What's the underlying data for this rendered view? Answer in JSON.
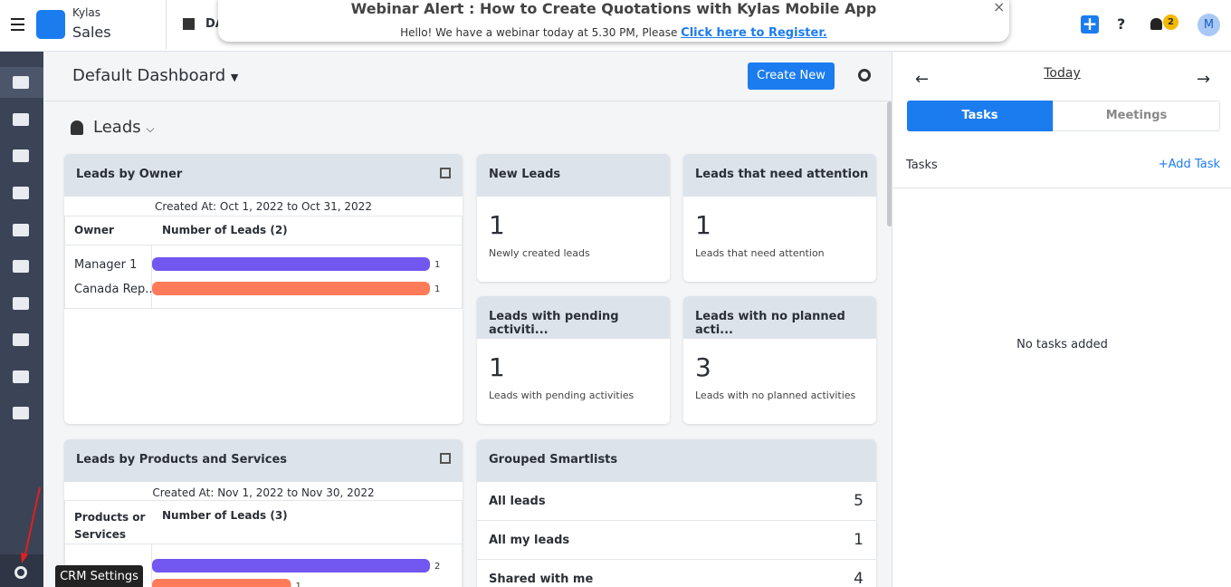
{
  "app": {
    "brand": "Kylas",
    "product": "Sales",
    "nav_partial": "DA"
  },
  "banner": {
    "title": "Webinar Alert : How to Create Quotations with Kylas Mobile App",
    "text": "Hello! We have a webinar today at 5.30 PM, Please",
    "link": "Click here to Register."
  },
  "header": {
    "help": "?",
    "notifications": 2,
    "avatar": "M"
  },
  "dashboard": {
    "title": "Default Dashboard",
    "create_button": "Create New",
    "section": "Leads"
  },
  "owner_widget": {
    "title": "Leads by Owner",
    "created": "Created At: Oct 1, 2022 to Oct 31, 2022",
    "columns": [
      "Owner",
      "Number of Leads (2)"
    ],
    "categories": [
      "Manager 1",
      "Canada Rep..."
    ],
    "values": [
      1,
      1
    ],
    "colors": [
      "#7257f0",
      "#ff7b5a"
    ]
  },
  "products_widget": {
    "title": "Leads by Products and Services",
    "created": "Created At: Nov 1, 2022 to Nov 30, 2022",
    "columns": [
      "Products or Services",
      "Number of Leads (3)"
    ],
    "categories": [
      null,
      null
    ],
    "values": [
      2,
      1
    ],
    "colors": [
      "#7257f0",
      "#ff7b5a"
    ]
  },
  "cards": [
    {
      "title": "New Leads",
      "count": 1,
      "description": "Newly created leads"
    },
    {
      "title": "Leads that need attention",
      "count": 1,
      "description": "Leads that need attention"
    },
    {
      "title": "Leads with pending activiti...",
      "count": 1,
      "description": "Leads with pending activities"
    },
    {
      "title": "Leads with no planned acti...",
      "count": 3,
      "description": "Leads with no planned activities"
    }
  ],
  "smartlists": {
    "title": "Grouped Smartlists",
    "rows": [
      {
        "label": "All leads",
        "count": 5
      },
      {
        "label": "All my leads",
        "count": 1
      },
      {
        "label": "Shared with me",
        "count": 4
      }
    ]
  },
  "side_panel": {
    "date": "Today",
    "tabs": [
      "Tasks",
      "Meetings"
    ],
    "section": "Tasks",
    "add": "+Add Task",
    "empty": "No tasks added"
  },
  "tooltip": "CRM Settings"
}
